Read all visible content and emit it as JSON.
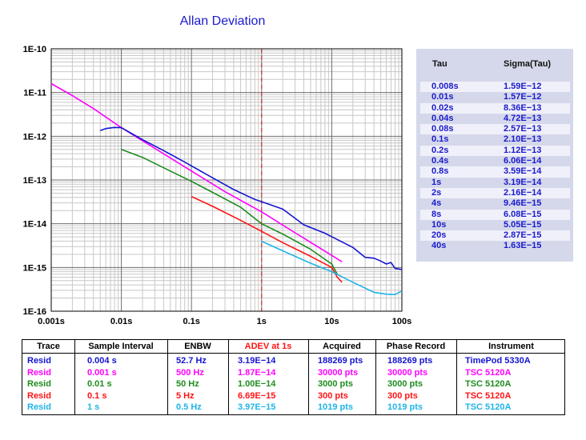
{
  "chart_data": {
    "type": "line",
    "title": "Allan Deviation",
    "x_scale": "log",
    "y_scale": "log",
    "xlim": [
      0.001,
      100
    ],
    "ylim": [
      1e-16,
      1e-10
    ],
    "x_ticks": [
      "0.001s",
      "0.01s",
      "0.1s",
      "1s",
      "10s",
      "100s"
    ],
    "y_ticks": [
      "1E-10",
      "1E-11",
      "1E-12",
      "1E-13",
      "1E-14",
      "1E-15",
      "1E-16"
    ],
    "grid": true,
    "reference_line_x": 1,
    "series": [
      {
        "color": "#ff00ff",
        "x": [
          0.001,
          0.002,
          0.004,
          0.01,
          0.03,
          0.1,
          0.3,
          1,
          3,
          7,
          14
        ],
        "y": [
          1.6e-11,
          8.5e-12,
          4.3e-12,
          1.57e-12,
          5.3e-13,
          1.6e-13,
          5.4e-14,
          1.87e-14,
          6.2e-15,
          2.7e-15,
          1.35e-15
        ]
      },
      {
        "color": "#1414d2",
        "x": [
          0.005,
          0.006,
          0.008,
          0.01,
          0.02,
          0.04,
          0.08,
          0.1,
          0.2,
          0.4,
          0.8,
          1,
          2,
          4,
          8,
          10,
          20,
          30,
          40,
          50,
          60,
          70,
          80,
          100
        ],
        "y": [
          1.35e-12,
          1.5e-12,
          1.59e-12,
          1.57e-12,
          8.36e-13,
          4.72e-13,
          2.57e-13,
          2.1e-13,
          1.12e-13,
          6.06e-14,
          3.59e-14,
          3.19e-14,
          2.16e-14,
          9.46e-15,
          6.08e-15,
          5.05e-15,
          2.87e-15,
          1.7e-15,
          1.63e-15,
          1.4e-15,
          1.2e-15,
          1.3e-15,
          9.5e-16,
          9e-16
        ]
      },
      {
        "color": "#1e8c1e",
        "x": [
          0.01,
          0.02,
          0.05,
          0.1,
          0.2,
          0.5,
          1,
          2,
          5,
          10,
          12
        ],
        "y": [
          5e-13,
          3.3e-13,
          1.6e-13,
          9.3e-14,
          5.2e-14,
          2.4e-14,
          1e-14,
          5.8e-15,
          2.6e-15,
          1.2e-15,
          7e-16
        ]
      },
      {
        "color": "#ff1414",
        "x": [
          0.1,
          0.2,
          0.5,
          1,
          2,
          5,
          10,
          12,
          14
        ],
        "y": [
          4.2e-14,
          2.5e-14,
          1.2e-14,
          6.69e-15,
          3.7e-15,
          1.8e-15,
          1e-15,
          6e-16,
          4.6e-16
        ]
      },
      {
        "color": "#1eb4e6",
        "x": [
          1,
          2,
          5,
          10,
          20,
          40,
          60,
          80,
          100
        ],
        "y": [
          3.97e-15,
          2.4e-15,
          1.25e-15,
          8e-16,
          4.6e-16,
          2.7e-16,
          2.45e-16,
          2.4e-16,
          2.9e-16
        ]
      }
    ]
  },
  "tau_table": {
    "header_tau": "Tau",
    "header_sigma": "Sigma(Tau)",
    "rows": [
      [
        "0.008s",
        "1.59E−12"
      ],
      [
        "0.01s",
        "1.57E−12"
      ],
      [
        "0.02s",
        "8.36E−13"
      ],
      [
        "0.04s",
        "4.72E−13"
      ],
      [
        "0.08s",
        "2.57E−13"
      ],
      [
        "0.1s",
        "2.10E−13"
      ],
      [
        "0.2s",
        "1.12E−13"
      ],
      [
        "0.4s",
        "6.06E−14"
      ],
      [
        "0.8s",
        "3.59E−14"
      ],
      [
        "1s",
        "3.19E−14"
      ],
      [
        "2s",
        "2.16E−14"
      ],
      [
        "4s",
        "9.46E−15"
      ],
      [
        "8s",
        "6.08E−15"
      ],
      [
        "10s",
        "5.05E−15"
      ],
      [
        "20s",
        "2.87E−15"
      ],
      [
        "40s",
        "1.63E−15"
      ]
    ]
  },
  "trace_table": {
    "headers": [
      "Trace",
      "Sample Interval",
      "ENBW",
      "ADEV at 1s",
      "Acquired",
      "Phase Record",
      "Instrument"
    ],
    "header_colors": [
      "#000000",
      "#000000",
      "#000000",
      "#ff1414",
      "#000000",
      "#000000",
      "#000000"
    ],
    "rows": [
      {
        "color": "#1414d2",
        "cells": [
          "Resid",
          "0.004 s",
          "52.7 Hz",
          "3.19E−14",
          "188269 pts",
          "188269 pts",
          "TimePod 5330A"
        ]
      },
      {
        "color": "#ff00ff",
        "cells": [
          "Resid",
          "0.001 s",
          "500 Hz",
          "1.87E−14",
          "30000 pts",
          "30000 pts",
          "TSC 5120A"
        ]
      },
      {
        "color": "#1e8c1e",
        "cells": [
          "Resid",
          "0.01 s",
          "50 Hz",
          "1.00E−14",
          "3000 pts",
          "3000 pts",
          "TSC 5120A"
        ]
      },
      {
        "color": "#ff1414",
        "cells": [
          "Resid",
          "0.1 s",
          "5 Hz",
          "6.69E−15",
          "300 pts",
          "300 pts",
          "TSC 5120A"
        ]
      },
      {
        "color": "#1eb4e6",
        "cells": [
          "Resid",
          "1 s",
          "0.5 Hz",
          "3.97E−15",
          "1019 pts",
          "1019 pts",
          "TSC 5120A"
        ]
      }
    ]
  }
}
